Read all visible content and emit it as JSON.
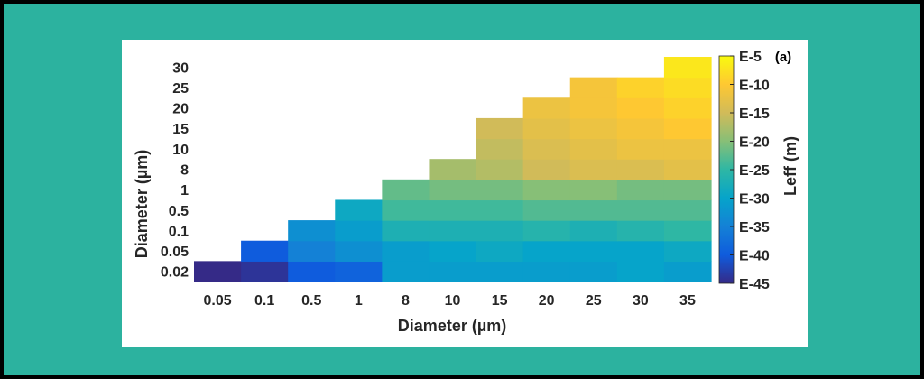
{
  "chart_data": {
    "type": "heatmap",
    "panel_label": "(a)",
    "xlabel": "Diameter (µm)",
    "ylabel": "Diameter (µm)",
    "colorbar_label": "Leff (m)",
    "x_categories": [
      "0.05",
      "0.1",
      "0.5",
      "1",
      "8",
      "10",
      "15",
      "20",
      "25",
      "30",
      "35"
    ],
    "y_categories": [
      "0.02",
      "0.05",
      "0.1",
      "0.5",
      "1",
      "8",
      "10",
      "15",
      "20",
      "25",
      "30"
    ],
    "colorbar_ticks": [
      "E-5",
      "E-10",
      "E-15",
      "E-20",
      "E-25",
      "E-30",
      "E-35",
      "E-40",
      "E-45"
    ],
    "colorbar_range_exponent": [
      -45,
      -5
    ],
    "colormap": [
      "#352a87",
      "#0f5cdd",
      "#1481d6",
      "#06a4ca",
      "#2eb7a4",
      "#87bf77",
      "#d1bb59",
      "#fec832",
      "#f9fb0e"
    ],
    "values_exponent": [
      [
        -45,
        -44,
        -40,
        -39,
        -31,
        -31,
        -31,
        -31,
        -31,
        -30,
        -31
      ],
      [
        null,
        -40,
        -35,
        -33,
        -31,
        -30,
        -29,
        -30,
        -30,
        -30,
        -29
      ],
      [
        null,
        null,
        -33,
        -31,
        -27,
        -27,
        -27,
        -26,
        -27,
        -26,
        -25
      ],
      [
        null,
        null,
        null,
        -29,
        -24,
        -24,
        -24,
        -23,
        -23,
        -23,
        -23
      ],
      [
        null,
        null,
        null,
        null,
        -22,
        -21,
        -21,
        -20,
        -20,
        -21,
        -21
      ],
      [
        null,
        null,
        null,
        null,
        null,
        -18,
        -17,
        -15,
        -14,
        -14,
        -13
      ],
      [
        null,
        null,
        null,
        null,
        null,
        null,
        -16,
        -14,
        -13,
        -12,
        -12
      ],
      [
        null,
        null,
        null,
        null,
        null,
        null,
        -15,
        -13,
        -12,
        -11,
        -10
      ],
      [
        null,
        null,
        null,
        null,
        null,
        null,
        null,
        -12,
        -11,
        -10,
        -9
      ],
      [
        null,
        null,
        null,
        null,
        null,
        null,
        null,
        null,
        -11,
        -9,
        -8
      ],
      [
        null,
        null,
        null,
        null,
        null,
        null,
        null,
        null,
        null,
        null,
        -7
      ]
    ]
  }
}
